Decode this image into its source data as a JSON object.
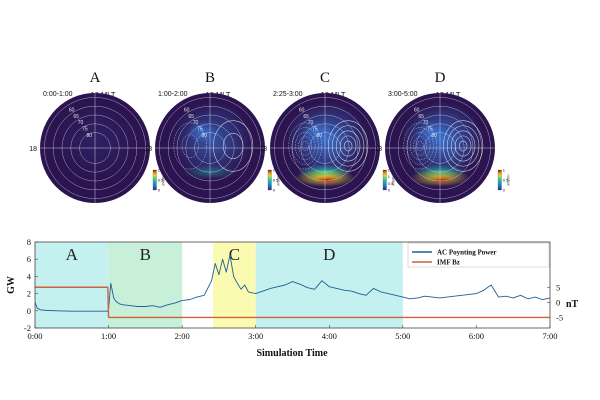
{
  "chart_data": [
    {
      "type": "heatmap",
      "panels": [
        {
          "letter": "A",
          "time": "0:00-1:00",
          "mlt_label": "12 MLT",
          "side_label": "18",
          "lat_labels": [
            "60",
            "65",
            "70",
            "75",
            "80"
          ],
          "max_intensity": 0.1,
          "colorbar_ticks": [
            "1",
            "0.5",
            "0"
          ],
          "colorbar_unit": "mW/m²"
        },
        {
          "letter": "B",
          "time": "1:00-2:00",
          "mlt_label": "12 MLT",
          "side_label": "18",
          "lat_labels": [
            "60",
            "65",
            "70",
            "75",
            "80"
          ],
          "max_intensity": 0.45,
          "colorbar_ticks": [
            "1",
            "0.5",
            "0"
          ],
          "colorbar_unit": "mW/m²"
        },
        {
          "letter": "C",
          "time": "2:25-3:00",
          "mlt_label": "12 MLT",
          "side_label": "18",
          "lat_labels": [
            "60",
            "65",
            "70",
            "75",
            "80"
          ],
          "max_intensity": 1.0,
          "colorbar_ticks": [
            "1.5",
            "1",
            "0.5",
            "0"
          ],
          "colorbar_unit": "mW/m²"
        },
        {
          "letter": "D",
          "time": "3:00-5:00",
          "mlt_label": "12 MLT",
          "side_label": "18",
          "lat_labels": [
            "60",
            "65",
            "70",
            "75",
            "80"
          ],
          "max_intensity": 0.85,
          "colorbar_ticks": [
            "1",
            "0.5",
            "0"
          ],
          "colorbar_unit": "mW/m²"
        }
      ]
    },
    {
      "type": "line",
      "xlabel": "Simulation Time",
      "ylabel": "GW",
      "y2label": "nT",
      "xlim": [
        0,
        7
      ],
      "ylim": [
        -2,
        8
      ],
      "y2lim": [
        -8.5,
        20
      ],
      "x_tick_labels": [
        "0:00",
        "1:00",
        "2:00",
        "3:00",
        "4:00",
        "5:00",
        "6:00",
        "7:00"
      ],
      "y_tick_labels": [
        "-2",
        "0",
        "2",
        "4",
        "6",
        "8"
      ],
      "y2_tick_labels": [
        "5",
        "0",
        "-5"
      ],
      "y2_tick_values": [
        5,
        0,
        -5
      ],
      "regions": [
        {
          "label": "A",
          "start": 0,
          "end": 1,
          "color": "#c4f0f0"
        },
        {
          "label": "B",
          "start": 1,
          "end": 2,
          "color": "#c8f0d8"
        },
        {
          "label": "C",
          "start": 2.42,
          "end": 3,
          "color": "#fafab0"
        },
        {
          "label": "D",
          "start": 3,
          "end": 5,
          "color": "#c4f0f0"
        }
      ],
      "series": [
        {
          "name": "AC Poynting Power",
          "color": "#1f5f99",
          "axis": "left",
          "x": [
            0,
            0.03,
            0.08,
            0.15,
            0.3,
            0.5,
            0.7,
            0.9,
            0.99,
            1.0,
            1.03,
            1.07,
            1.1,
            1.15,
            1.2,
            1.3,
            1.4,
            1.5,
            1.6,
            1.7,
            1.8,
            1.9,
            2.0,
            2.1,
            2.2,
            2.3,
            2.4,
            2.45,
            2.5,
            2.55,
            2.6,
            2.65,
            2.7,
            2.75,
            2.8,
            2.85,
            2.9,
            3.0,
            3.1,
            3.2,
            3.3,
            3.4,
            3.5,
            3.6,
            3.7,
            3.8,
            3.9,
            4.0,
            4.1,
            4.2,
            4.3,
            4.4,
            4.5,
            4.6,
            4.7,
            4.8,
            4.9,
            5.0,
            5.1,
            5.2,
            5.3,
            5.4,
            5.5,
            5.6,
            5.7,
            5.8,
            5.9,
            6.0,
            6.1,
            6.2,
            6.3,
            6.4,
            6.5,
            6.6,
            6.7,
            6.8,
            6.9,
            7.0
          ],
          "values": [
            1.0,
            0.3,
            0.1,
            0.05,
            0.0,
            -0.05,
            -0.05,
            -0.05,
            -0.05,
            0.2,
            3.2,
            1.5,
            1.1,
            0.8,
            0.7,
            0.6,
            0.5,
            0.5,
            0.6,
            0.4,
            0.7,
            0.9,
            1.2,
            1.3,
            1.6,
            1.8,
            3.5,
            5.5,
            4.2,
            6.0,
            4.5,
            6.5,
            4.0,
            3.2,
            2.5,
            3.0,
            2.2,
            2.0,
            2.3,
            2.6,
            2.8,
            3.0,
            3.4,
            3.1,
            2.7,
            2.5,
            3.5,
            2.8,
            2.6,
            2.4,
            2.3,
            2.0,
            1.8,
            2.6,
            2.2,
            2.0,
            1.8,
            1.6,
            1.4,
            1.5,
            1.7,
            1.6,
            1.5,
            1.6,
            1.7,
            1.8,
            1.9,
            2.0,
            2.4,
            3.0,
            1.6,
            1.7,
            1.5,
            1.8,
            1.4,
            1.6,
            1.3,
            1.5
          ]
        },
        {
          "name": "IMF Bz",
          "color": "#d1603d",
          "axis": "right",
          "x": [
            0,
            0.99,
            1.0,
            7.0
          ],
          "values": [
            5,
            5,
            -5,
            -5
          ]
        }
      ]
    }
  ]
}
